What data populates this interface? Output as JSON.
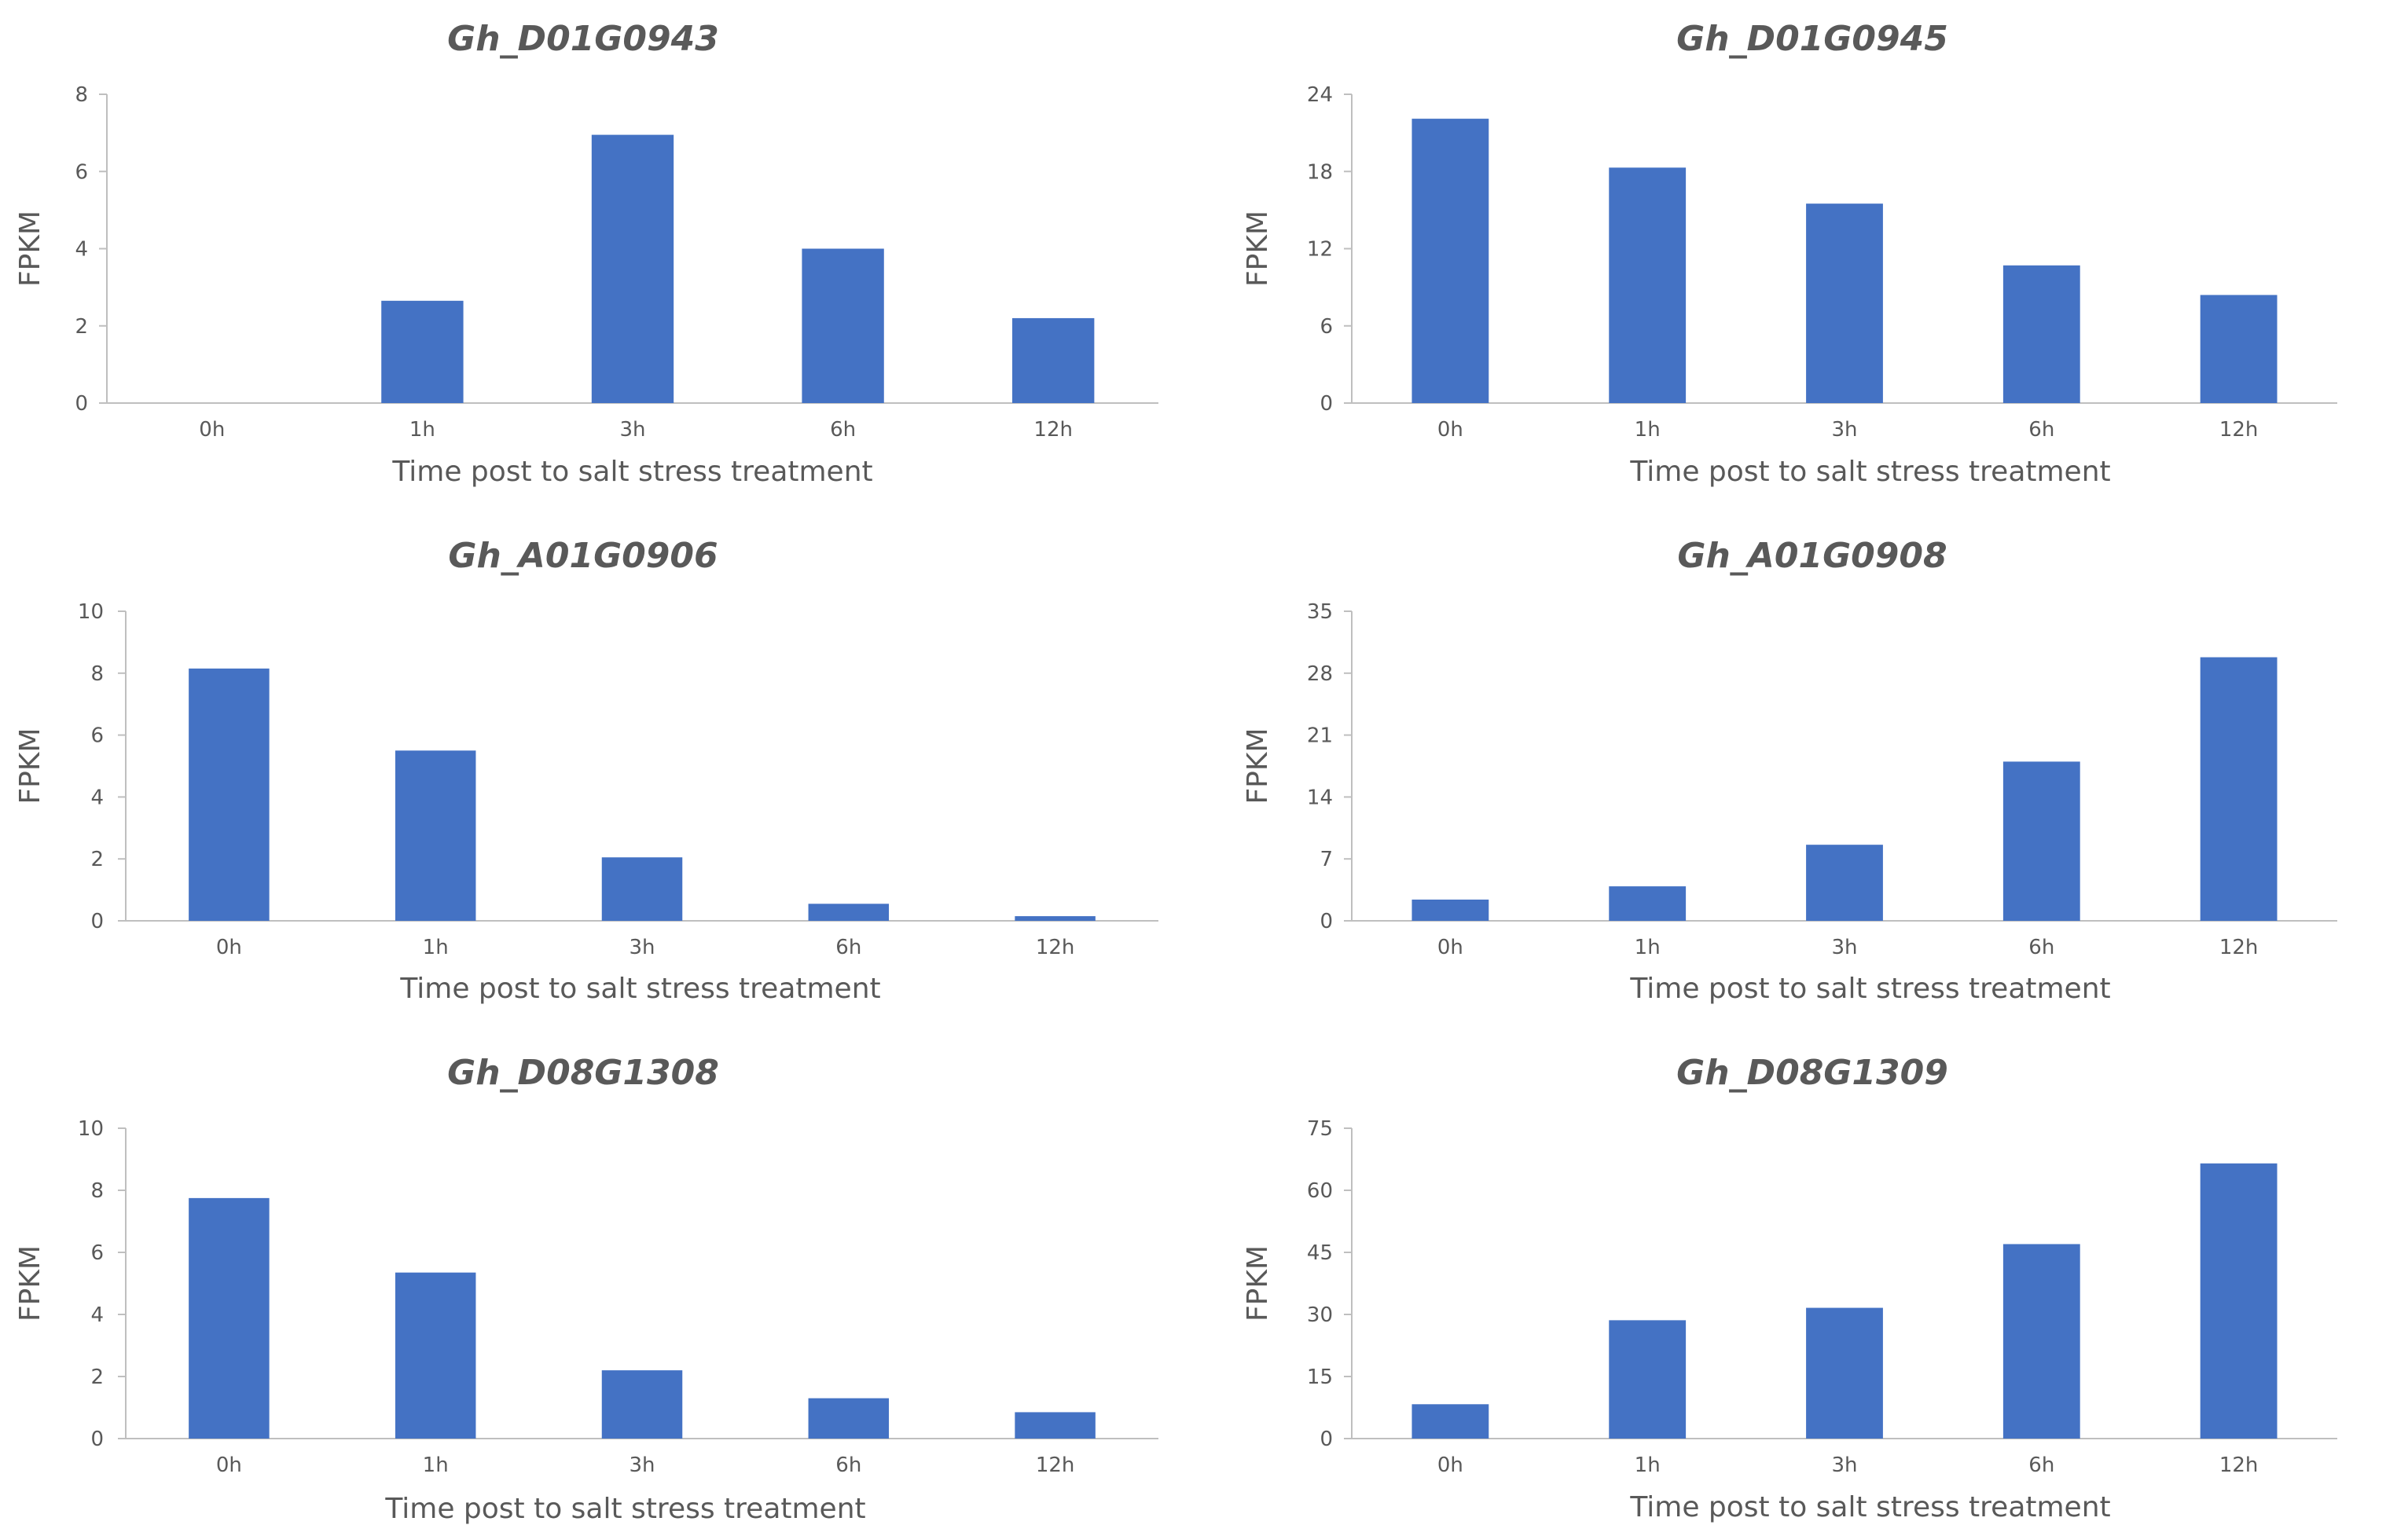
{
  "figure": {
    "colors": {
      "bar": "#4472C4",
      "axis": "#BFBFBF",
      "text": "#595959"
    }
  },
  "chart_data": [
    {
      "type": "bar",
      "title": "Gh_D01G0943",
      "xlabel": "Time post to salt stress treatment",
      "ylabel": "FPKM",
      "categories": [
        "0h",
        "1h",
        "3h",
        "6h",
        "12h"
      ],
      "values": [
        0,
        2.65,
        6.95,
        4.0,
        2.2
      ],
      "ylim": [
        0,
        8
      ],
      "yticks": [
        0,
        2,
        4,
        6,
        8
      ],
      "grid": false
    },
    {
      "type": "bar",
      "title": "Gh_D01G0945",
      "xlabel": "Time post to salt stress treatment",
      "ylabel": "FPKM",
      "categories": [
        "0h",
        "1h",
        "3h",
        "6h",
        "12h"
      ],
      "values": [
        22.1,
        18.3,
        15.5,
        10.7,
        8.4
      ],
      "ylim": [
        0,
        24
      ],
      "yticks": [
        0,
        6,
        12,
        18,
        24
      ],
      "grid": false
    },
    {
      "type": "bar",
      "title": "Gh_A01G0906",
      "xlabel": "Time post to salt stress treatment",
      "ylabel": "FPKM",
      "categories": [
        "0h",
        "1h",
        "3h",
        "6h",
        "12h"
      ],
      "values": [
        8.15,
        5.5,
        2.05,
        0.55,
        0.15
      ],
      "ylim": [
        0,
        10
      ],
      "yticks": [
        0,
        2,
        4,
        6,
        8,
        10
      ],
      "grid": false
    },
    {
      "type": "bar",
      "title": "Gh_A01G0908",
      "xlabel": "Time post to salt stress treatment",
      "ylabel": "FPKM",
      "categories": [
        "0h",
        "1h",
        "3h",
        "6h",
        "12h"
      ],
      "values": [
        2.4,
        3.9,
        8.6,
        18.0,
        29.8
      ],
      "ylim": [
        0,
        35
      ],
      "yticks": [
        0,
        7,
        14,
        21,
        28,
        35
      ],
      "grid": false
    },
    {
      "type": "bar",
      "title": "Gh_D08G1308",
      "xlabel": "Time post to salt stress treatment",
      "ylabel": "FPKM",
      "categories": [
        "0h",
        "1h",
        "3h",
        "6h",
        "12h"
      ],
      "values": [
        7.75,
        5.35,
        2.2,
        1.3,
        0.85
      ],
      "ylim": [
        0,
        10
      ],
      "yticks": [
        0,
        2,
        4,
        6,
        8,
        10
      ],
      "grid": false
    },
    {
      "type": "bar",
      "title": "Gh_D08G1309",
      "xlabel": "Time post to salt stress treatment",
      "ylabel": "FPKM",
      "categories": [
        "0h",
        "1h",
        "3h",
        "6h",
        "12h"
      ],
      "values": [
        8.3,
        28.6,
        31.6,
        47.0,
        66.5
      ],
      "ylim": [
        0,
        75
      ],
      "yticks": [
        0,
        15,
        30,
        45,
        60,
        75
      ],
      "grid": false
    }
  ]
}
